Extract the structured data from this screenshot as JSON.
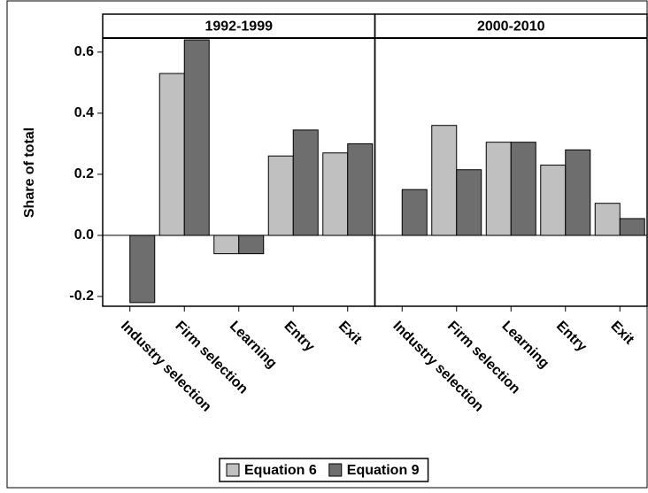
{
  "chart_data": {
    "type": "bar",
    "ylabel": "Share of total",
    "ylim": [
      -0.232,
      0.646
    ],
    "yticks": [
      -0.2,
      {
        "value": 0,
        "label": "0.0"
      },
      0.2,
      0.4,
      0.6
    ],
    "series": [
      {
        "name": "Equation 6",
        "color": "#c0c0c0"
      },
      {
        "name": "Equation 9",
        "color": "#6e6e6e"
      }
    ],
    "panels": [
      {
        "title": "1992-1999",
        "categories": [
          "Industry selection",
          "Firm selection",
          "Learning",
          "Entry",
          "Exit"
        ],
        "series": [
          {
            "values": [
              0,
              0.53,
              -0.06,
              0.26,
              0.27
            ]
          },
          {
            "values": [
              -0.22,
              0.64,
              -0.06,
              0.345,
              0.3
            ]
          }
        ]
      },
      {
        "title": "2000-2010",
        "categories": [
          "Industry selection",
          "Firm selection",
          "Learning",
          "Entry",
          "Exit"
        ],
        "series": [
          {
            "values": [
              0,
              0.36,
              0.305,
              0.23,
              0.105
            ]
          },
          {
            "values": [
              0.15,
              0.215,
              0.305,
              0.28,
              0.055
            ]
          }
        ]
      }
    ]
  }
}
